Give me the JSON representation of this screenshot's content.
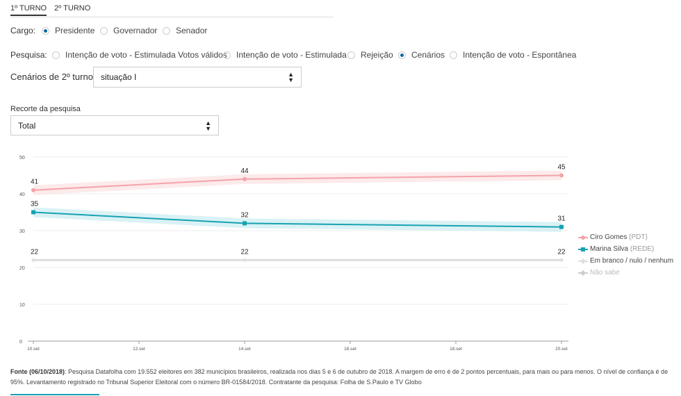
{
  "tabs": [
    {
      "label": "1º TURNO",
      "active": true
    },
    {
      "label": "2º TURNO",
      "active": false
    }
  ],
  "cargo": {
    "label": "Cargo:",
    "options": [
      {
        "label": "Presidente",
        "checked": true
      },
      {
        "label": "Governador",
        "checked": false
      },
      {
        "label": "Senador",
        "checked": false
      }
    ]
  },
  "pesquisa": {
    "label": "Pesquisa:",
    "options": [
      {
        "label": "Intenção de voto - Estimulada Votos válidos",
        "checked": false
      },
      {
        "label": "Intenção de voto - Estimulada",
        "checked": false
      },
      {
        "label": "Rejeição",
        "checked": false
      },
      {
        "label": "Cenários",
        "checked": true
      },
      {
        "label": "Intenção de voto - Espontânea",
        "checked": false
      }
    ]
  },
  "cenarios": {
    "label": "Cenários de 2º turno:",
    "selected": "situação I"
  },
  "recorte": {
    "label": "Recorte da pesquisa",
    "selected": "Total"
  },
  "chart_data": {
    "type": "line",
    "x": [
      "10.set",
      "12.set",
      "14.set",
      "16.set",
      "18.set",
      "20.set"
    ],
    "ylim": [
      0,
      50
    ],
    "yticks": [
      0,
      10,
      20,
      30,
      40,
      50
    ],
    "grid": true,
    "legend_position": "right",
    "series": [
      {
        "name": "Ciro Gomes",
        "party": "(PDT)",
        "color": "#f4a3a8",
        "band": "#fde6e7",
        "marker": "circle",
        "points": [
          {
            "x": "10.set",
            "y": 41
          },
          {
            "x": "14.set",
            "y": 44
          },
          {
            "x": "20.set",
            "y": 45
          }
        ]
      },
      {
        "name": "Marina Silva",
        "party": "(REDE)",
        "color": "#17a2b2",
        "band": "#d3f0f3",
        "marker": "square",
        "points": [
          {
            "x": "10.set",
            "y": 35
          },
          {
            "x": "14.set",
            "y": 32
          },
          {
            "x": "20.set",
            "y": 31
          }
        ]
      },
      {
        "name": "Em branco / nulo / nenhum",
        "party": "",
        "color": "#dddddd",
        "band": "",
        "marker": "diamond",
        "points": [
          {
            "x": "10.set",
            "y": 22
          },
          {
            "x": "14.set",
            "y": 22
          },
          {
            "x": "20.set",
            "y": 22
          }
        ]
      },
      {
        "name": "Não sabe",
        "party": "",
        "color": "#cccccc",
        "band": "",
        "marker": "diamond",
        "muted": true,
        "points": []
      }
    ]
  },
  "footer": {
    "source_label": "Fonte (06/10/2018)",
    "text": ": Pesquisa Datafolha com 19.552 eleitores em 382 municípios brasileiros, realizada nos dias 5 e 6 de outubro de 2018. A margem de erro é de 2 pontos percentuais, para mais ou para menos. O nível de confiança é de 95%. Levantamento registrado no Tribunal Superior Eleitoral com o número BR-01584/2018. Contratante da pesquisa: Folha de S.Paulo e TV Globo"
  }
}
